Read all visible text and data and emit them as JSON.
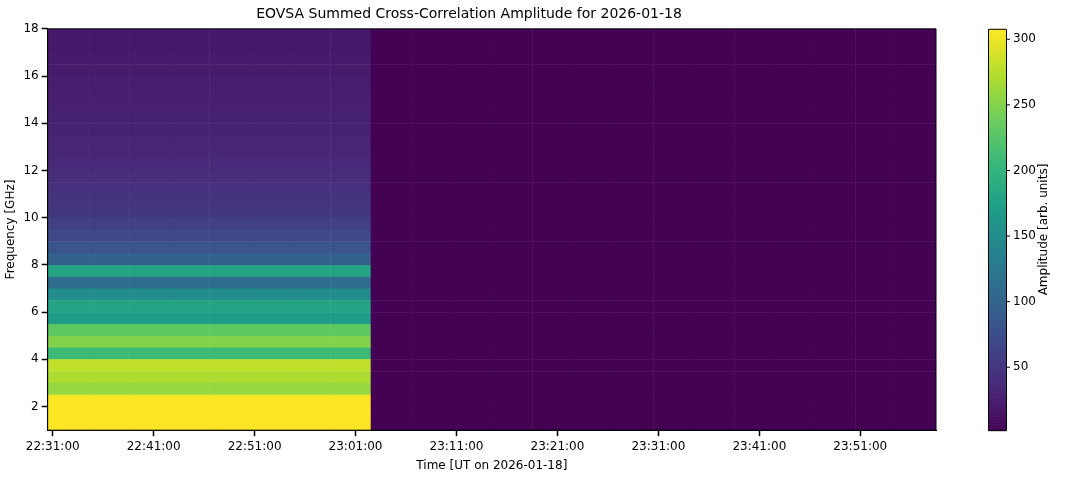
{
  "chart_data": {
    "type": "heatmap",
    "title": "EOVSA Summed Cross-Correlation Amplitude for 2026-01-18",
    "xlabel": "Time [UT on 2026-01-18]",
    "ylabel": "Frequency [GHz]",
    "clabel": "Amplitude [arb. units]",
    "x": [
      "2026-01-18T22:32:30",
      "2026-01-18T22:36:30",
      "2026-01-18T22:40:30",
      "2026-01-18T22:44:30",
      "2026-01-18T22:48:30",
      "2026-01-18T22:52:30",
      "2026-01-18T22:56:30",
      "2026-01-18T23:00:30",
      "2026-01-18T23:04:30",
      "2026-01-18T23:08:30",
      "2026-01-18T23:12:30",
      "2026-01-18T23:16:30",
      "2026-01-18T23:20:30",
      "2026-01-18T23:24:30",
      "2026-01-18T23:28:30",
      "2026-01-18T23:32:30",
      "2026-01-18T23:36:30",
      "2026-01-18T23:40:30",
      "2026-01-18T23:44:30",
      "2026-01-18T23:48:30",
      "2026-01-18T23:52:30",
      "2026-01-18T23:56:30"
    ],
    "y": [
      17.75,
      17.25,
      16.75,
      16.25,
      15.75,
      15.25,
      14.75,
      14.25,
      13.75,
      13.25,
      12.75,
      12.25,
      11.75,
      11.25,
      10.75,
      10.25,
      9.75,
      9.25,
      8.75,
      8.25,
      7.75,
      7.25,
      6.75,
      6.25,
      5.75,
      5.25,
      4.75,
      4.25,
      3.75,
      3.25,
      2.75,
      2.25,
      1.75,
      1.25
    ],
    "cells": [
      [
        22,
        22,
        22,
        22,
        22,
        22,
        22,
        22,
        3,
        3,
        3,
        3,
        3,
        3,
        3,
        3,
        3,
        3,
        3,
        3,
        3,
        3
      ],
      [
        22,
        22,
        22,
        22,
        22,
        22,
        22,
        22,
        3,
        3,
        3,
        3,
        3,
        3,
        3,
        3,
        3,
        3,
        3,
        3,
        3,
        3
      ],
      [
        24,
        24,
        24,
        24,
        24,
        24,
        24,
        24,
        3,
        3,
        3,
        3,
        3,
        3,
        3,
        3,
        3,
        3,
        3,
        3,
        3,
        3
      ],
      [
        25,
        25,
        25,
        25,
        25,
        25,
        25,
        25,
        3,
        3,
        3,
        3,
        3,
        3,
        3,
        3,
        3,
        3,
        3,
        3,
        3,
        3
      ],
      [
        27,
        27,
        27,
        27,
        27,
        27,
        27,
        27,
        3,
        3,
        3,
        3,
        3,
        3,
        3,
        3,
        3,
        3,
        3,
        3,
        3,
        3
      ],
      [
        28,
        28,
        28,
        28,
        28,
        28,
        28,
        28,
        3,
        3,
        3,
        3,
        3,
        3,
        3,
        3,
        3,
        3,
        3,
        3,
        3,
        3
      ],
      [
        29,
        29,
        29,
        29,
        29,
        29,
        29,
        29,
        3,
        3,
        3,
        3,
        3,
        3,
        3,
        3,
        3,
        3,
        3,
        3,
        3,
        3
      ],
      [
        30,
        30,
        30,
        30,
        30,
        30,
        30,
        30,
        3,
        3,
        3,
        3,
        3,
        3,
        3,
        3,
        3,
        3,
        3,
        3,
        3,
        3
      ],
      [
        31,
        31,
        31,
        31,
        31,
        31,
        31,
        31,
        3,
        3,
        3,
        3,
        3,
        3,
        3,
        3,
        3,
        3,
        3,
        3,
        3,
        3
      ],
      [
        33,
        33,
        33,
        33,
        33,
        33,
        33,
        33,
        3,
        3,
        3,
        3,
        3,
        3,
        3,
        3,
        3,
        3,
        3,
        3,
        3,
        3
      ],
      [
        35,
        35,
        35,
        35,
        35,
        35,
        35,
        35,
        3,
        3,
        3,
        3,
        3,
        3,
        3,
        3,
        3,
        3,
        3,
        3,
        3,
        3
      ],
      [
        38,
        38,
        38,
        38,
        38,
        38,
        38,
        38,
        3,
        3,
        3,
        3,
        3,
        3,
        3,
        3,
        3,
        3,
        3,
        3,
        3,
        3
      ],
      [
        42,
        42,
        42,
        42,
        42,
        42,
        42,
        42,
        3,
        3,
        3,
        3,
        3,
        3,
        3,
        3,
        3,
        3,
        3,
        3,
        3,
        3
      ],
      [
        45,
        45,
        45,
        45,
        45,
        45,
        45,
        45,
        3,
        3,
        3,
        3,
        3,
        3,
        3,
        3,
        3,
        3,
        3,
        3,
        3,
        3
      ],
      [
        48,
        48,
        48,
        48,
        48,
        48,
        48,
        48,
        3,
        3,
        3,
        3,
        3,
        3,
        3,
        3,
        3,
        3,
        3,
        3,
        3,
        3
      ],
      [
        52,
        52,
        52,
        52,
        52,
        52,
        52,
        52,
        3,
        3,
        3,
        3,
        3,
        3,
        3,
        3,
        3,
        3,
        3,
        3,
        3,
        3
      ],
      [
        60,
        60,
        60,
        60,
        60,
        60,
        60,
        60,
        3,
        3,
        3,
        3,
        3,
        3,
        3,
        3,
        3,
        3,
        3,
        3,
        3,
        3
      ],
      [
        68,
        68,
        68,
        68,
        68,
        68,
        68,
        68,
        3,
        3,
        3,
        3,
        3,
        3,
        3,
        3,
        3,
        3,
        3,
        3,
        3,
        3
      ],
      [
        80,
        80,
        80,
        80,
        80,
        80,
        80,
        80,
        3,
        3,
        3,
        3,
        3,
        3,
        3,
        3,
        3,
        3,
        3,
        3,
        3,
        3
      ],
      [
        95,
        95,
        95,
        95,
        95,
        95,
        95,
        95,
        3,
        3,
        3,
        3,
        3,
        3,
        3,
        3,
        3,
        3,
        3,
        3,
        3,
        3
      ],
      [
        180,
        180,
        180,
        180,
        180,
        180,
        180,
        180,
        3,
        3,
        3,
        3,
        3,
        3,
        3,
        3,
        3,
        3,
        3,
        3,
        3,
        3
      ],
      [
        110,
        110,
        110,
        110,
        110,
        110,
        110,
        110,
        3,
        3,
        3,
        3,
        3,
        3,
        3,
        3,
        3,
        3,
        3,
        3,
        3,
        3
      ],
      [
        150,
        150,
        150,
        150,
        150,
        150,
        150,
        150,
        3,
        3,
        3,
        3,
        3,
        3,
        3,
        3,
        3,
        3,
        3,
        3,
        3,
        3
      ],
      [
        180,
        180,
        180,
        180,
        180,
        180,
        180,
        180,
        3,
        3,
        3,
        3,
        3,
        3,
        3,
        3,
        3,
        3,
        3,
        3,
        3,
        3
      ],
      [
        170,
        170,
        170,
        170,
        170,
        170,
        170,
        170,
        3,
        3,
        3,
        3,
        3,
        3,
        3,
        3,
        3,
        3,
        3,
        3,
        3,
        3
      ],
      [
        230,
        230,
        230,
        230,
        230,
        230,
        230,
        230,
        3,
        3,
        3,
        3,
        3,
        3,
        3,
        3,
        3,
        3,
        3,
        3,
        3,
        3
      ],
      [
        250,
        250,
        250,
        250,
        250,
        250,
        250,
        250,
        3,
        3,
        3,
        3,
        3,
        3,
        3,
        3,
        3,
        3,
        3,
        3,
        3,
        3
      ],
      [
        210,
        210,
        210,
        210,
        210,
        210,
        210,
        210,
        3,
        3,
        3,
        3,
        3,
        3,
        3,
        3,
        3,
        3,
        3,
        3,
        3,
        3
      ],
      [
        280,
        280,
        280,
        280,
        280,
        280,
        280,
        280,
        3,
        3,
        3,
        3,
        3,
        3,
        3,
        3,
        3,
        3,
        3,
        3,
        3,
        3
      ],
      [
        270,
        270,
        270,
        270,
        270,
        270,
        270,
        270,
        3,
        3,
        3,
        3,
        3,
        3,
        3,
        3,
        3,
        3,
        3,
        3,
        3,
        3
      ],
      [
        260,
        260,
        260,
        260,
        260,
        260,
        260,
        260,
        3,
        3,
        3,
        3,
        3,
        3,
        3,
        3,
        3,
        3,
        3,
        3,
        3,
        3
      ],
      [
        308,
        308,
        308,
        308,
        308,
        308,
        308,
        308,
        3,
        3,
        3,
        3,
        3,
        3,
        3,
        3,
        3,
        3,
        3,
        3,
        3,
        3
      ],
      [
        308,
        308,
        308,
        308,
        308,
        308,
        308,
        308,
        3,
        3,
        3,
        3,
        3,
        3,
        3,
        3,
        3,
        3,
        3,
        3,
        3,
        3
      ],
      [
        308,
        308,
        308,
        308,
        308,
        308,
        308,
        308,
        3,
        3,
        3,
        3,
        3,
        3,
        3,
        3,
        3,
        3,
        3,
        3,
        3,
        3
      ]
    ],
    "xlim": [
      "2026-01-18T22:30:30",
      "2026-01-18T23:58:30"
    ],
    "xticks": [
      {
        "value": "2026-01-18T22:31:00",
        "label": "22:31:00"
      },
      {
        "value": "2026-01-18T22:41:00",
        "label": "22:41:00"
      },
      {
        "value": "2026-01-18T22:51:00",
        "label": "22:51:00"
      },
      {
        "value": "2026-01-18T23:01:00",
        "label": "23:01:00"
      },
      {
        "value": "2026-01-18T23:11:00",
        "label": "23:11:00"
      },
      {
        "value": "2026-01-18T23:21:00",
        "label": "23:21:00"
      },
      {
        "value": "2026-01-18T23:31:00",
        "label": "23:31:00"
      },
      {
        "value": "2026-01-18T23:41:00",
        "label": "23:41:00"
      },
      {
        "value": "2026-01-18T23:51:00",
        "label": "23:51:00"
      }
    ],
    "ylim": [
      1,
      18
    ],
    "yticks": [
      2,
      4,
      6,
      8,
      10,
      12,
      14,
      16,
      18
    ],
    "clim": [
      2,
      308
    ],
    "cticks": [
      50,
      100,
      150,
      200,
      250,
      300
    ],
    "grid": false
  }
}
